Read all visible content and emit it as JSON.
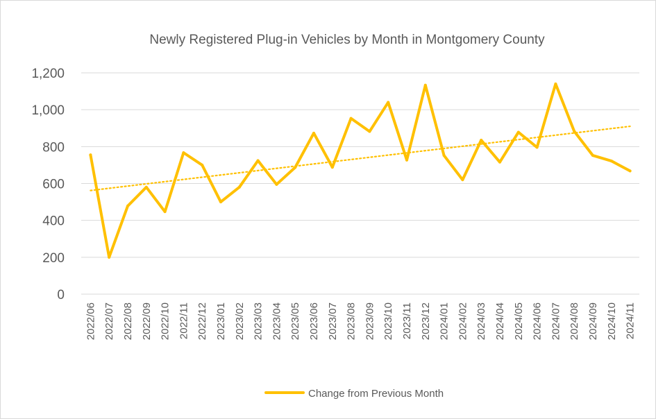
{
  "chart_data": {
    "type": "line",
    "title": "Newly Registered Plug-in Vehicles by Month in Montgomery County",
    "xlabel": "",
    "ylabel": "",
    "ylim": [
      0,
      1200
    ],
    "y_ticks": [
      0,
      200,
      400,
      600,
      800,
      1000,
      1200
    ],
    "y_tick_labels": [
      "0",
      "200",
      "400",
      "600",
      "800",
      "1,000",
      "1,200"
    ],
    "grid": true,
    "legend_position": "bottom",
    "categories": [
      "2022/06",
      "2022/07",
      "2022/08",
      "2022/09",
      "2022/10",
      "2022/11",
      "2022/12",
      "2023/01",
      "2023/02",
      "2023/03",
      "2023/04",
      "2023/05",
      "2023/06",
      "2023/07",
      "2023/08",
      "2023/09",
      "2023/10",
      "2023/11",
      "2023/12",
      "2024/01",
      "2024/02",
      "2024/03",
      "2024/04",
      "2024/05",
      "2024/06",
      "2024/07",
      "2024/08",
      "2024/09",
      "2024/10",
      "2024/11"
    ],
    "series": [
      {
        "name": "Change from Previous Month",
        "color": "#FFC000",
        "values": [
          755,
          200,
          478,
          580,
          447,
          767,
          700,
          500,
          580,
          724,
          595,
          687,
          873,
          688,
          953,
          882,
          1040,
          727,
          1133,
          752,
          620,
          835,
          716,
          878,
          796,
          1140,
          883,
          752,
          722,
          668
        ]
      }
    ],
    "trendline": {
      "type": "linear",
      "color": "#FFC000",
      "start_value": 562,
      "end_value": 910
    }
  }
}
